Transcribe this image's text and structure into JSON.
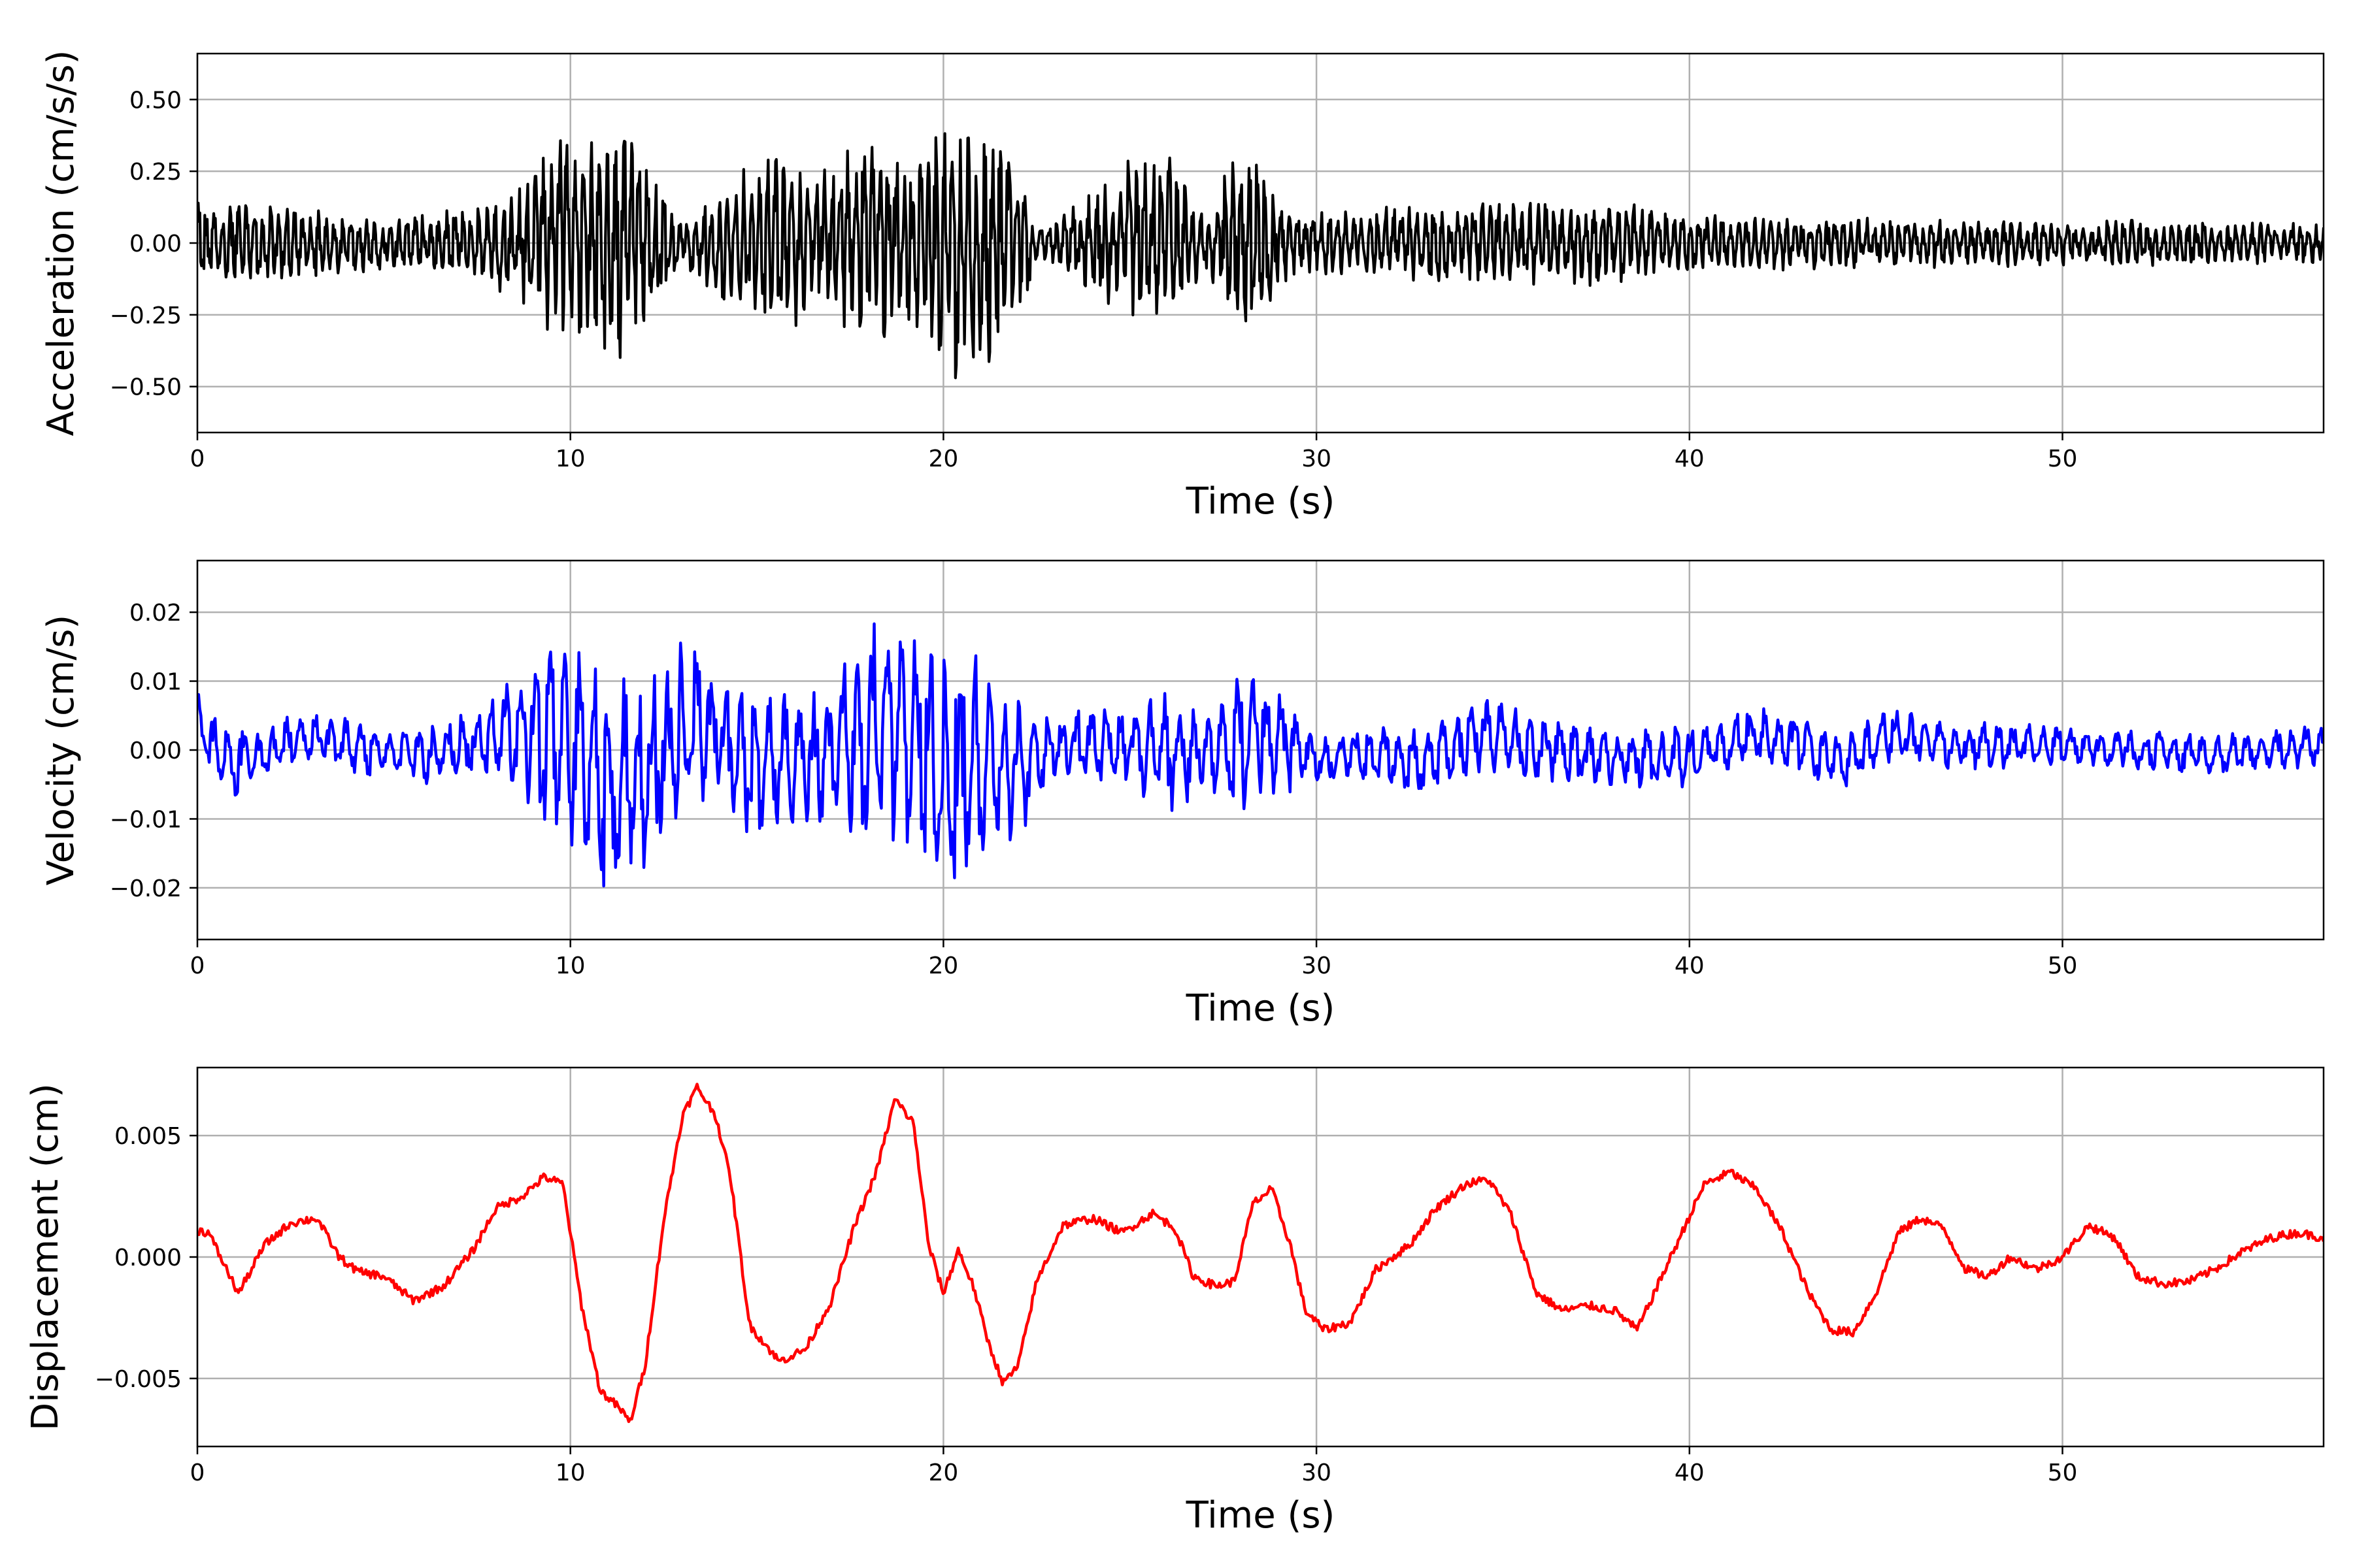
{
  "chart_data": [
    {
      "type": "line",
      "ylabel": "Acceleration (cm/s/s)",
      "xlabel": "Time (s)",
      "xlim": [
        0,
        57
      ],
      "ylim": [
        -0.66,
        0.66
      ],
      "xticks": [
        0,
        10,
        20,
        30,
        40,
        50
      ],
      "xtick_labels": [
        "0",
        "10",
        "20",
        "30",
        "40",
        "50"
      ],
      "yticks": [
        0.5,
        0.25,
        0.0,
        -0.25,
        -0.5
      ],
      "ytick_labels": [
        "0.50",
        "0.25",
        "0.00",
        "−0.25",
        "−0.50"
      ],
      "grid": true,
      "color": "#000000",
      "envelope": {
        "t": [
          0,
          2,
          5,
          7,
          8.5,
          9,
          9.8,
          10.5,
          11.2,
          12,
          13,
          14,
          15.5,
          17,
          18,
          19,
          20,
          20.5,
          21,
          22,
          22.5,
          24,
          25,
          26,
          27,
          27.8,
          28.5,
          29.5,
          31,
          35,
          38,
          40,
          45,
          50,
          54,
          57
        ],
        "amp": [
          0.14,
          0.13,
          0.1,
          0.12,
          0.2,
          0.3,
          0.4,
          0.36,
          0.46,
          0.32,
          0.08,
          0.22,
          0.32,
          0.3,
          0.38,
          0.32,
          0.46,
          0.55,
          0.48,
          0.32,
          0.05,
          0.18,
          0.3,
          0.34,
          0.1,
          0.32,
          0.28,
          0.1,
          0.12,
          0.15,
          0.15,
          0.1,
          0.09,
          0.08,
          0.08,
          0.07
        ]
      }
    },
    {
      "type": "line",
      "ylabel": "Velocity (cm/s)",
      "xlabel": "Time (s)",
      "xlim": [
        0,
        57
      ],
      "ylim": [
        -0.0275,
        0.0275
      ],
      "xticks": [
        0,
        10,
        20,
        30,
        40,
        50
      ],
      "xtick_labels": [
        "0",
        "10",
        "20",
        "30",
        "40",
        "50"
      ],
      "yticks": [
        0.02,
        0.01,
        0.0,
        -0.01,
        -0.02
      ],
      "ytick_labels": [
        "0.02",
        "0.01",
        "0.00",
        "−0.01",
        "−0.02"
      ],
      "grid": true,
      "color": "#0000ff",
      "envelope": {
        "t": [
          0,
          1,
          3,
          6,
          8,
          9,
          10,
          11,
          12,
          13,
          14,
          15,
          16,
          17,
          18,
          19,
          20,
          20.5,
          21,
          22,
          23,
          25,
          26,
          27,
          28,
          29,
          30,
          33,
          35,
          38,
          41,
          45,
          50,
          54,
          57
        ],
        "amp": [
          0.004,
          0.005,
          0.004,
          0.004,
          0.006,
          0.012,
          0.018,
          0.019,
          0.014,
          0.013,
          0.01,
          0.011,
          0.01,
          0.012,
          0.016,
          0.017,
          0.019,
          0.022,
          0.016,
          0.012,
          0.005,
          0.006,
          0.01,
          0.007,
          0.012,
          0.008,
          0.004,
          0.005,
          0.006,
          0.004,
          0.005,
          0.004,
          0.003,
          0.003,
          0.003
        ]
      },
      "trend": {
        "t": [
          0,
          0.3,
          1,
          3,
          6,
          8,
          9,
          10,
          11,
          12,
          13,
          14,
          15,
          17,
          18,
          19,
          20,
          21,
          22,
          23,
          25,
          27,
          28,
          29,
          30,
          33,
          34.5,
          36,
          38,
          40,
          41.5,
          43,
          44,
          45.5,
          47,
          50,
          52,
          54,
          57
        ],
        "v": [
          0.008,
          0.002,
          -0.004,
          0.003,
          -0.002,
          0.003,
          0.004,
          0.002,
          -0.01,
          -0.006,
          0.006,
          0.002,
          -0.004,
          -0.002,
          0.006,
          0.004,
          -0.002,
          -0.004,
          -0.006,
          0.001,
          0.001,
          -0.001,
          0.004,
          0.002,
          -0.002,
          -0.002,
          0.004,
          0.0,
          -0.002,
          -0.002,
          0.003,
          0.001,
          -0.003,
          0.004,
          0.001,
          0.001,
          0.0,
          -0.001,
          0.001
        ]
      }
    },
    {
      "type": "line",
      "ylabel": "Displacement (cm)",
      "xlabel": "Time (s)",
      "xlim": [
        0,
        57
      ],
      "ylim": [
        -0.0078,
        0.0078
      ],
      "xticks": [
        0,
        10,
        20,
        30,
        40,
        50
      ],
      "xtick_labels": [
        "0",
        "10",
        "20",
        "30",
        "40",
        "50"
      ],
      "yticks": [
        0.005,
        0.0,
        -0.005
      ],
      "ytick_labels": [
        "0.005",
        "0.000",
        "−0.005"
      ],
      "grid": true,
      "color": "#ff0000",
      "x": [
        0,
        0.3,
        1.1,
        1.8,
        2.5,
        3.2,
        3.8,
        4.3,
        5,
        5.8,
        6.6,
        7.4,
        8,
        8.7,
        9.3,
        9.8,
        10.3,
        10.8,
        11.3,
        11.6,
        12,
        12.5,
        13,
        13.4,
        13.9,
        14.3,
        14.8,
        15.6,
        16.3,
        17,
        17.6,
        18.2,
        18.7,
        19.2,
        19.6,
        20,
        20.4,
        20.8,
        21.2,
        21.6,
        22,
        22.5,
        23.2,
        24,
        24.8,
        25.6,
        26.2,
        26.7,
        27.3,
        27.8,
        28.3,
        28.8,
        29.3,
        29.7,
        30.2,
        30.9,
        31.6,
        32.5,
        33.2,
        34,
        34.6,
        35.2,
        35.9,
        36.6,
        37.3,
        38,
        38.6,
        39.2,
        39.8,
        40.4,
        41.1,
        41.8,
        42.5,
        43.2,
        43.8,
        44.4,
        45,
        45.6,
        46.2,
        46.8,
        47.4,
        48,
        48.6,
        49.3,
        50,
        50.7,
        51.4,
        52,
        52.7,
        53.4,
        54.1,
        54.8,
        55.6,
        56.3,
        57
      ],
      "y": [
        0.0011,
        0.001,
        -0.0015,
        0.0005,
        0.0014,
        0.0016,
        0.0,
        -0.0006,
        -0.0008,
        -0.0018,
        -0.0012,
        0.0003,
        0.002,
        0.0025,
        0.0033,
        0.003,
        -0.002,
        -0.0055,
        -0.0062,
        -0.0068,
        -0.0045,
        0.0015,
        0.0058,
        0.007,
        0.0058,
        0.0032,
        -0.0028,
        -0.0043,
        -0.0038,
        -0.0018,
        0.0012,
        0.0035,
        0.0065,
        0.0055,
        0.0005,
        -0.0015,
        0.0003,
        -0.0012,
        -0.0035,
        -0.0052,
        -0.0045,
        -0.001,
        0.0013,
        0.0016,
        0.001,
        0.0018,
        0.0012,
        -0.0008,
        -0.0012,
        -0.001,
        0.0022,
        0.0028,
        0.0005,
        -0.0022,
        -0.003,
        -0.0027,
        -0.0005,
        0.0005,
        0.002,
        0.003,
        0.0032,
        0.0018,
        -0.0015,
        -0.0022,
        -0.002,
        -0.0022,
        -0.003,
        -0.001,
        0.001,
        0.003,
        0.0035,
        0.0028,
        0.001,
        -0.0015,
        -0.003,
        -0.0031,
        -0.0015,
        0.001,
        0.0016,
        0.0012,
        -0.0005,
        -0.0008,
        0.0,
        -0.0005,
        0.0,
        0.0013,
        0.0008,
        -0.0008,
        -0.0011,
        -0.001,
        -0.0005,
        0.0002,
        0.0008,
        0.001,
        0.0008
      ]
    }
  ]
}
